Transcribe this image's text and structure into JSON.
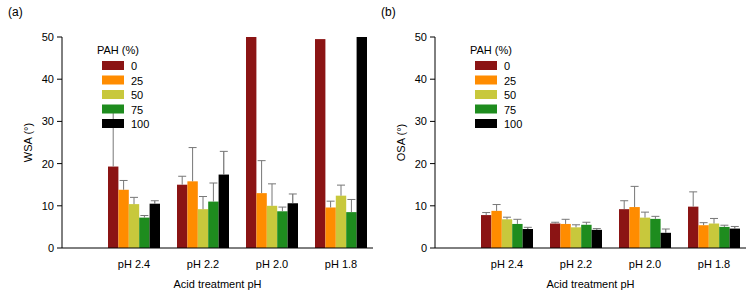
{
  "chart_data": [
    {
      "type": "bar",
      "title": "(a)",
      "y_label": "WSA (°)",
      "x_label": "Acid treatment pH",
      "legend_title": "PAH (%)",
      "legend": "upper left",
      "grid": false,
      "categories": [
        "pH 2.4",
        "pH 2.2",
        "pH 2.0",
        "pH 1.8"
      ],
      "ylim": [
        0,
        50
      ],
      "yticks": [
        0,
        10,
        20,
        30,
        40,
        50
      ],
      "series": [
        {
          "name": "0",
          "color": "#8b1414",
          "values": [
            19.3,
            15.0,
            50,
            49.5
          ],
          "errors": [
            14.3,
            2.0,
            null,
            null
          ]
        },
        {
          "name": "25",
          "color": "#ff8c00",
          "values": [
            13.8,
            15.8,
            13.0,
            9.6
          ],
          "errors": [
            2.2,
            8.0,
            7.7,
            1.5
          ]
        },
        {
          "name": "50",
          "color": "#c8c83c",
          "values": [
            10.4,
            9.2,
            10.0,
            12.4
          ],
          "errors": [
            1.6,
            3.0,
            5.2,
            2.5
          ]
        },
        {
          "name": "75",
          "color": "#1e8c1e",
          "values": [
            7.2,
            11.0,
            8.7,
            8.5
          ],
          "errors": [
            0.5,
            4.4,
            1.0,
            3.0
          ]
        },
        {
          "name": "100",
          "color": "#000000",
          "values": [
            10.5,
            17.4,
            10.6,
            50
          ],
          "errors": [
            0.7,
            5.5,
            2.2,
            null
          ]
        }
      ]
    },
    {
      "type": "bar",
      "title": "(b)",
      "y_label": "OSA (°)",
      "x_label": "Acid treatment pH",
      "legend_title": "PAH (%)",
      "legend": "upper left",
      "grid": false,
      "categories": [
        "pH 2.4",
        "pH 2.2",
        "pH 2.0",
        "pH 1.8"
      ],
      "ylim": [
        0,
        50
      ],
      "yticks": [
        0,
        10,
        20,
        30,
        40,
        50
      ],
      "series": [
        {
          "name": "0",
          "color": "#8b1414",
          "values": [
            7.8,
            5.8,
            9.2,
            9.8
          ],
          "errors": [
            0.6,
            0.3,
            2.0,
            3.5
          ]
        },
        {
          "name": "25",
          "color": "#ff8c00",
          "values": [
            8.8,
            5.7,
            9.7,
            5.4
          ],
          "errors": [
            1.5,
            1.1,
            4.9,
            0.6
          ]
        },
        {
          "name": "50",
          "color": "#c8c83c",
          "values": [
            6.8,
            4.9,
            7.2,
            5.8
          ],
          "errors": [
            0.5,
            0.6,
            1.3,
            1.2
          ]
        },
        {
          "name": "75",
          "color": "#1e8c1e",
          "values": [
            5.7,
            5.5,
            6.9,
            5.0
          ],
          "errors": [
            1.1,
            0.6,
            0.6,
            0.4
          ]
        },
        {
          "name": "100",
          "color": "#000000",
          "values": [
            4.5,
            4.3,
            3.6,
            4.6
          ],
          "errors": [
            0.4,
            0.3,
            0.9,
            0.5
          ]
        }
      ]
    }
  ]
}
